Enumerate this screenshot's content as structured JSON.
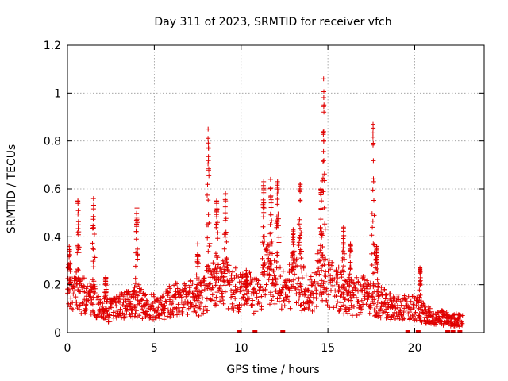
{
  "chart_data": {
    "type": "scatter",
    "title": "Day 311 of 2023, SRMTID for receiver vfch",
    "xlabel": "GPS time / hours",
    "ylabel": "SRMTID / TECUs",
    "xlim": [
      0,
      24
    ],
    "ylim": [
      0,
      1.2
    ],
    "x_ticks": [
      0,
      5,
      10,
      15,
      20
    ],
    "x_tick_labels": [
      "0",
      "5",
      "10",
      "15",
      "20"
    ],
    "y_ticks": [
      0,
      0.2,
      0.4,
      0.6,
      0.8,
      1.0,
      1.2
    ],
    "y_tick_labels": [
      "0",
      "0.2",
      "0.4",
      "0.6",
      "0.8",
      "1",
      "1.2"
    ],
    "grid": true,
    "marker": "+",
    "color": "#e00000",
    "background_level": [
      [
        0.0,
        0.15
      ],
      [
        0.5,
        0.17
      ],
      [
        1.0,
        0.14
      ],
      [
        1.5,
        0.13
      ],
      [
        2.0,
        0.08
      ],
      [
        2.5,
        0.09
      ],
      [
        3.0,
        0.1
      ],
      [
        3.5,
        0.11
      ],
      [
        4.0,
        0.13
      ],
      [
        4.5,
        0.1
      ],
      [
        5.0,
        0.1
      ],
      [
        5.5,
        0.1
      ],
      [
        6.0,
        0.13
      ],
      [
        6.5,
        0.13
      ],
      [
        7.0,
        0.14
      ],
      [
        7.5,
        0.13
      ],
      [
        8.0,
        0.17
      ],
      [
        8.5,
        0.2
      ],
      [
        9.0,
        0.2
      ],
      [
        9.5,
        0.18
      ],
      [
        10.0,
        0.15
      ],
      [
        10.5,
        0.16
      ],
      [
        11.0,
        0.15
      ],
      [
        11.5,
        0.24
      ],
      [
        12.0,
        0.2
      ],
      [
        12.5,
        0.15
      ],
      [
        13.0,
        0.22
      ],
      [
        13.5,
        0.18
      ],
      [
        14.0,
        0.15
      ],
      [
        14.5,
        0.22
      ],
      [
        15.0,
        0.2
      ],
      [
        15.5,
        0.18
      ],
      [
        16.0,
        0.14
      ],
      [
        16.5,
        0.14
      ],
      [
        17.0,
        0.15
      ],
      [
        17.5,
        0.13
      ],
      [
        18.0,
        0.12
      ],
      [
        18.5,
        0.11
      ],
      [
        19.0,
        0.1
      ],
      [
        19.5,
        0.1
      ],
      [
        20.0,
        0.1
      ],
      [
        20.5,
        0.08
      ],
      [
        21.0,
        0.06
      ],
      [
        21.5,
        0.06
      ],
      [
        22.0,
        0.05
      ],
      [
        22.5,
        0.05
      ],
      [
        22.8,
        0.05
      ]
    ],
    "spikes": [
      {
        "x": 0.1,
        "peak": 0.36
      },
      {
        "x": 0.6,
        "peak": 0.55
      },
      {
        "x": 1.5,
        "peak": 0.56
      },
      {
        "x": 2.2,
        "peak": 0.23
      },
      {
        "x": 4.0,
        "peak": 0.52
      },
      {
        "x": 7.5,
        "peak": 0.37
      },
      {
        "x": 8.1,
        "peak": 0.85
      },
      {
        "x": 8.6,
        "peak": 0.55
      },
      {
        "x": 9.1,
        "peak": 0.58
      },
      {
        "x": 10.3,
        "peak": 0.26
      },
      {
        "x": 11.3,
        "peak": 0.63
      },
      {
        "x": 11.7,
        "peak": 0.64
      },
      {
        "x": 12.1,
        "peak": 0.63
      },
      {
        "x": 13.0,
        "peak": 0.43
      },
      {
        "x": 13.4,
        "peak": 0.62
      },
      {
        "x": 14.6,
        "peak": 0.6
      },
      {
        "x": 14.75,
        "peak": 1.06
      },
      {
        "x": 15.9,
        "peak": 0.44
      },
      {
        "x": 16.3,
        "peak": 0.37
      },
      {
        "x": 17.6,
        "peak": 0.87
      },
      {
        "x": 17.8,
        "peak": 0.36
      },
      {
        "x": 20.3,
        "peak": 0.27
      }
    ],
    "zero_markers": [
      9.9,
      10.8,
      12.4,
      19.6,
      20.2,
      21.9,
      22.2,
      22.6
    ]
  }
}
